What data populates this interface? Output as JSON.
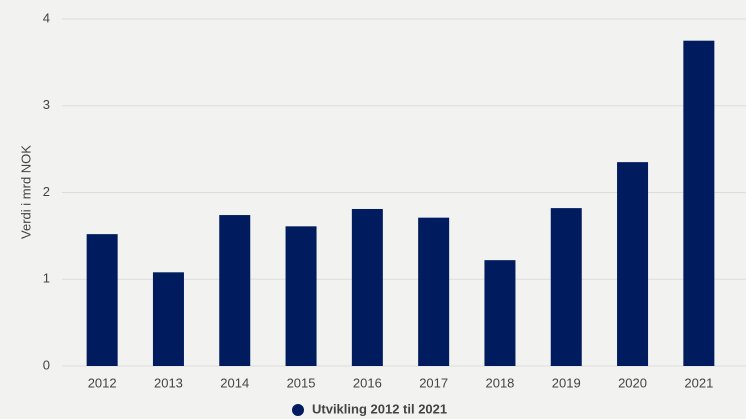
{
  "chart_data": {
    "type": "bar",
    "y_label": "Verdi i mrd NOK",
    "categories": [
      "2012",
      "2013",
      "2014",
      "2015",
      "2016",
      "2017",
      "2018",
      "2019",
      "2020",
      "2021"
    ],
    "series": [
      {
        "name": "Utvikling 2012 til 2021",
        "color": "#001c5e",
        "values": [
          1.52,
          1.08,
          1.74,
          1.61,
          1.81,
          1.71,
          1.22,
          1.82,
          2.35,
          3.75
        ]
      }
    ],
    "ylim": [
      0,
      4
    ],
    "yticks": [
      0,
      1,
      2,
      3,
      4
    ],
    "grid": true
  }
}
